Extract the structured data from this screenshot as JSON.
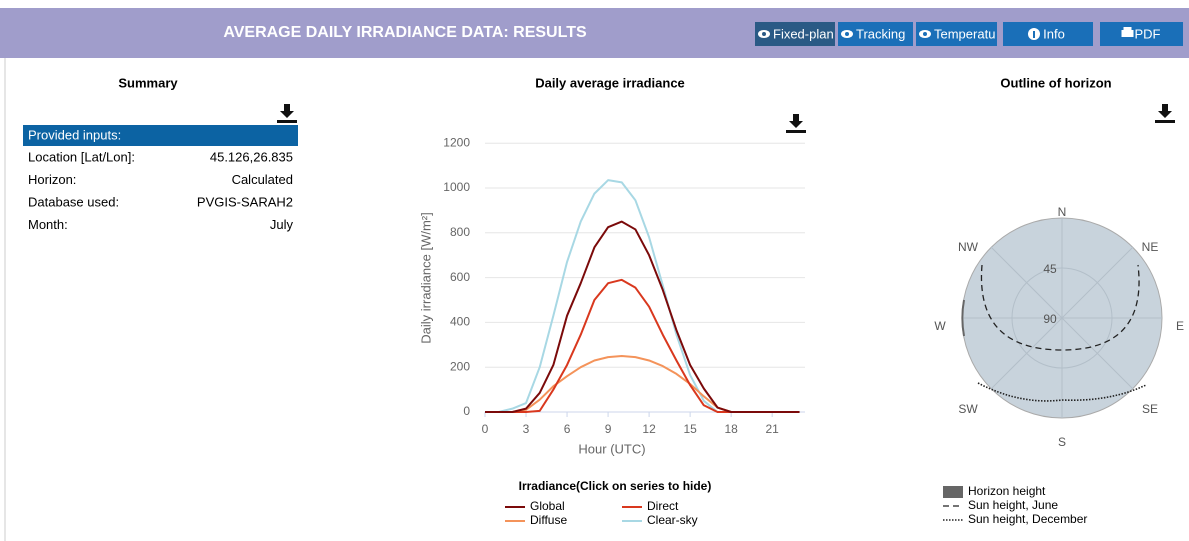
{
  "header": {
    "title": "AVERAGE DAILY IRRADIANCE DATA: RESULTS",
    "buttons": [
      "Fixed-plan",
      "Tracking",
      "Temperatu",
      "Info",
      "PDF"
    ]
  },
  "summary": {
    "title": "Summary",
    "table": {
      "header": "Provided inputs:",
      "rows": [
        [
          "Location [Lat/Lon]:",
          "45.126,26.835"
        ],
        [
          "Horizon:",
          "Calculated"
        ],
        [
          "Database used:",
          "PVGIS-SARAH2"
        ],
        [
          "Month:",
          "July"
        ]
      ]
    }
  },
  "chart_data": {
    "type": "line",
    "title": "Daily average irradiance",
    "x_label": "Hour (UTC)",
    "y_label": "Daily irradiance [W/m²]",
    "legend_title": "Irradiance(Click on series to hide)",
    "x": [
      0,
      1,
      2,
      3,
      4,
      5,
      6,
      7,
      8,
      9,
      10,
      11,
      12,
      13,
      14,
      15,
      16,
      17,
      18,
      19,
      20,
      21,
      22,
      23
    ],
    "series": [
      {
        "name": "Global",
        "color": "#7b0a0a",
        "values": [
          0,
          0,
          0,
          15,
          85,
          210,
          430,
          575,
          735,
          825,
          850,
          815,
          700,
          545,
          365,
          210,
          105,
          20,
          0,
          0,
          0,
          0,
          0,
          0
        ]
      },
      {
        "name": "Direct",
        "color": "#d9381e",
        "values": [
          0,
          0,
          0,
          0,
          5,
          100,
          210,
          345,
          500,
          575,
          590,
          555,
          470,
          345,
          230,
          120,
          30,
          0,
          0,
          0,
          0,
          0,
          0,
          0
        ]
      },
      {
        "name": "Diffuse",
        "color": "#f4935a",
        "values": [
          0,
          0,
          0,
          10,
          55,
          115,
          160,
          200,
          230,
          245,
          250,
          245,
          230,
          205,
          170,
          125,
          70,
          20,
          0,
          0,
          0,
          0,
          0,
          0
        ]
      },
      {
        "name": "Clear-sky",
        "color": "#a8d8e4",
        "values": [
          0,
          0,
          15,
          40,
          200,
          430,
          670,
          850,
          975,
          1035,
          1025,
          945,
          780,
          565,
          345,
          165,
          50,
          0,
          0,
          0,
          0,
          0,
          0,
          0
        ]
      }
    ],
    "xlim": [
      0,
      23.4
    ],
    "ylim": [
      0,
      1250
    ],
    "xticks": [
      0,
      3,
      6,
      9,
      12,
      15,
      18,
      21
    ],
    "yticks": [
      0,
      200,
      400,
      600,
      800,
      1000,
      1200
    ],
    "grid": true
  },
  "horizon": {
    "title": "Outline of horizon",
    "directions": [
      "N",
      "NE",
      "E",
      "SE",
      "S",
      "SW",
      "W",
      "NW"
    ],
    "rings": [
      "45",
      "90"
    ],
    "legend": [
      "Horizon height",
      "Sun height, June",
      "Sun height, December"
    ]
  }
}
